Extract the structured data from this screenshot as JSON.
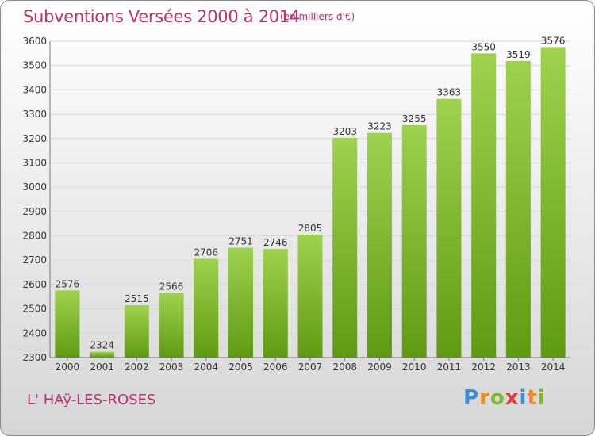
{
  "header": {
    "title": "Subventions Versées 2000 à 2014",
    "subtitle": "(en milliers d'€)"
  },
  "footer": {
    "town": "L' HAÿ-LES-ROSES",
    "logo": "Proxiti"
  },
  "colors": {
    "title": "#c0306d",
    "bar_top": "#9fd24e",
    "bar_bottom": "#5f9b12",
    "grid": "#d8d8d8"
  },
  "chart_data": {
    "type": "bar",
    "categories": [
      "2000",
      "2001",
      "2002",
      "2003",
      "2004",
      "2005",
      "2006",
      "2007",
      "2008",
      "2009",
      "2010",
      "2011",
      "2012",
      "2013",
      "2014"
    ],
    "values": [
      2576,
      2324,
      2515,
      2566,
      2706,
      2751,
      2746,
      2805,
      3203,
      3223,
      3255,
      3363,
      3550,
      3519,
      3576
    ],
    "title": "Subventions Versées 2000 à 2014",
    "ylim": [
      2300,
      3600
    ],
    "yticks": [
      2300,
      2400,
      2500,
      2600,
      2700,
      2800,
      2900,
      3000,
      3100,
      3200,
      3300,
      3400,
      3500,
      3600
    ],
    "grid": true,
    "legend": "none"
  }
}
